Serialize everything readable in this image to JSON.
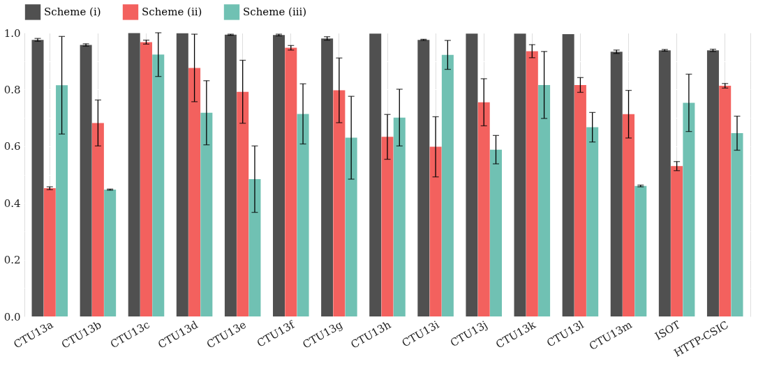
{
  "chart_data": {
    "type": "bar",
    "categories": [
      "CTU13a",
      "CTU13b",
      "CTU13c",
      "CTU13d",
      "CTU13e",
      "CTU13f",
      "CTU13g",
      "CTU13h",
      "CTU13i",
      "CTU13j",
      "CTU13k",
      "CTU13l",
      "CTU13m",
      "ISOT",
      "HTTP-CSIC"
    ],
    "series": [
      {
        "name": "Scheme (i)",
        "color": "#505050",
        "values": [
          0.975,
          0.957,
          0.999,
          0.998,
          0.993,
          0.992,
          0.98,
          0.997,
          0.975,
          0.997,
          0.997,
          0.995,
          0.933,
          0.938,
          0.938
        ],
        "errors": [
          0.005,
          0.004,
          null,
          null,
          0.002,
          0.003,
          0.006,
          null,
          0.002,
          null,
          null,
          null,
          0.006,
          0.003,
          0.004
        ]
      },
      {
        "name": "Scheme (ii)",
        "color": "#f3615e",
        "values": [
          0.452,
          0.682,
          0.967,
          0.876,
          0.792,
          0.947,
          0.797,
          0.633,
          0.598,
          0.755,
          0.935,
          0.816,
          0.713,
          0.53,
          0.813
        ],
        "errors": [
          0.005,
          0.081,
          0.007,
          0.119,
          0.111,
          0.008,
          0.114,
          0.079,
          0.106,
          0.083,
          0.023,
          0.026,
          0.084,
          0.016,
          0.008
        ]
      },
      {
        "name": "Scheme (iii)",
        "color": "#70c1b3",
        "values": [
          0.815,
          0.447,
          0.923,
          0.718,
          0.484,
          0.714,
          0.63,
          0.701,
          0.922,
          0.588,
          0.816,
          0.667,
          0.46,
          0.753,
          0.646
        ],
        "errors": [
          0.172,
          0.002,
          0.077,
          0.113,
          0.117,
          0.106,
          0.146,
          0.1,
          0.051,
          0.05,
          0.118,
          0.052,
          0.003,
          0.101,
          0.06
        ]
      }
    ],
    "ylim": [
      0,
      1
    ],
    "yticks": [
      {
        "value": 0,
        "label": "0.0"
      },
      {
        "value": 0.1,
        "label": null
      },
      {
        "value": 0.2,
        "label": "0.2"
      },
      {
        "value": 0.3,
        "label": null
      },
      {
        "value": 0.4,
        "label": "0.4"
      },
      {
        "value": 0.5,
        "label": null
      },
      {
        "value": 0.6,
        "label": "0.6"
      },
      {
        "value": 0.7,
        "label": null
      },
      {
        "value": 0.8,
        "label": "0.8"
      },
      {
        "value": 0.9,
        "label": null
      },
      {
        "value": 1,
        "label": "1.0"
      }
    ],
    "grid": true,
    "legend": "top"
  }
}
